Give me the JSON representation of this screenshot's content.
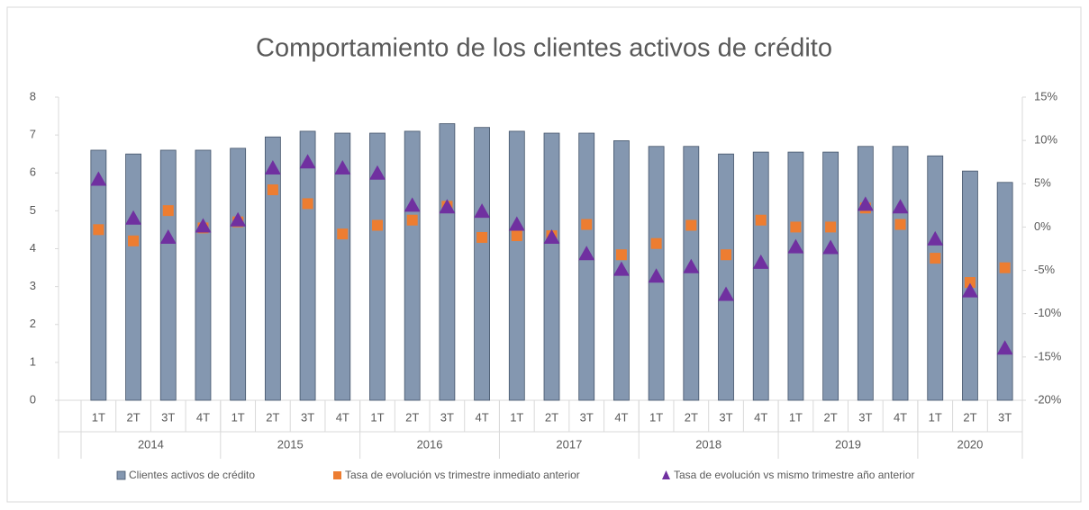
{
  "chart_data": {
    "type": "bar",
    "title": "Comportamiento de los clientes activos de crédito",
    "groups": [
      {
        "name": "2014",
        "categories": [
          "1T",
          "2T",
          "3T",
          "4T"
        ]
      },
      {
        "name": "2015",
        "categories": [
          "1T",
          "2T",
          "3T",
          "4T"
        ]
      },
      {
        "name": "2016",
        "categories": [
          "1T",
          "2T",
          "3T",
          "4T"
        ]
      },
      {
        "name": "2017",
        "categories": [
          "1T",
          "2T",
          "3T",
          "4T"
        ]
      },
      {
        "name": "2018",
        "categories": [
          "1T",
          "2T",
          "3T",
          "4T"
        ]
      },
      {
        "name": "2019",
        "categories": [
          "1T",
          "2T",
          "3T",
          "4T"
        ]
      },
      {
        "name": "2020",
        "categories": [
          "1T",
          "2T",
          "3T"
        ]
      }
    ],
    "series": [
      {
        "name": "Clientes activos de crédito",
        "type": "bar",
        "color": "#8497b0",
        "values": [
          6.6,
          6.5,
          6.6,
          6.6,
          6.65,
          6.95,
          7.1,
          7.05,
          7.05,
          7.1,
          7.3,
          7.2,
          7.1,
          7.05,
          7.05,
          6.85,
          6.7,
          6.7,
          6.5,
          6.55,
          6.55,
          6.55,
          6.7,
          6.7,
          6.45,
          6.05,
          5.75
        ]
      },
      {
        "name": "Tasa de evolución vs trimestre inmediato anterior",
        "type": "square",
        "axis": "y2",
        "color": "#ed7d31",
        "values": [
          -0.3,
          -1.6,
          1.9,
          -0.1,
          0.6,
          4.3,
          2.7,
          -0.8,
          0.2,
          0.8,
          2.4,
          -1.2,
          -1.0,
          -1.0,
          0.3,
          -3.2,
          -1.9,
          0.2,
          -3.2,
          0.8,
          0.0,
          0.0,
          2.2,
          0.3,
          -3.6,
          -6.4,
          -4.7
        ]
      },
      {
        "name": "Tasa de evolución vs mismo trimestre año anterior",
        "type": "triangle",
        "axis": "y2",
        "color": "#7030a0",
        "values": [
          5.5,
          1.0,
          -1.2,
          0.1,
          0.8,
          6.8,
          7.5,
          6.8,
          6.2,
          2.5,
          2.3,
          1.8,
          0.3,
          -1.2,
          -3.1,
          -4.9,
          -5.7,
          -4.6,
          -7.8,
          -4.1,
          -2.3,
          -2.4,
          2.6,
          2.3,
          -1.4,
          -7.4,
          -14.0
        ]
      }
    ],
    "ylim": [
      0,
      8
    ],
    "yticks": [
      0,
      1,
      2,
      3,
      4,
      5,
      6,
      7,
      8
    ],
    "y2lim": [
      -20,
      15
    ],
    "y2ticks": [
      {
        "value": -20,
        "label": "-20%"
      },
      {
        "value": -15,
        "label": "-15%"
      },
      {
        "value": -10,
        "label": "-10%"
      },
      {
        "value": -5,
        "label": "-5%"
      },
      {
        "value": 0,
        "label": "0%"
      },
      {
        "value": 5,
        "label": "5%"
      },
      {
        "value": 10,
        "label": "10%"
      },
      {
        "value": 15,
        "label": "15%"
      }
    ],
    "legend": "bottom"
  }
}
